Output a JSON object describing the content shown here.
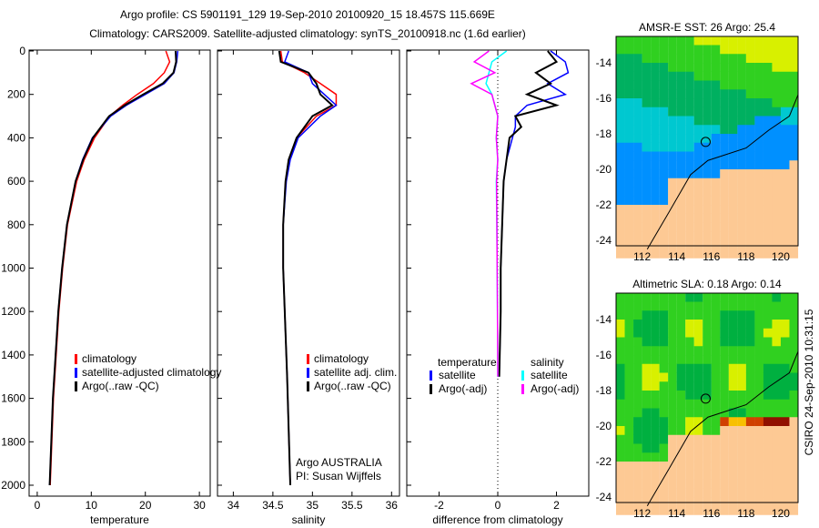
{
  "title_line1": "Argo profile: CS 5901191_129 19-Sep-2010 20100920_15 18.457S 115.669E",
  "title_line2": "Climatology: CARS2009. Satellite-adjusted climatology: synTS_20100918.nc (1.6d earlier)",
  "side_label": "CSIRO 24-Sep-2010 10:31:15",
  "chart_data": [
    {
      "type": "line",
      "xlabel": "temperature",
      "xlim": [
        -1.5,
        32
      ],
      "xticks": [
        0,
        10,
        20,
        30
      ],
      "ylim": [
        0,
        2000
      ],
      "yticks": [
        0,
        200,
        400,
        600,
        800,
        1000,
        1200,
        1400,
        1600,
        1800,
        2000
      ],
      "legend": [
        "climatology",
        "satellite-adjusted climatology",
        "Argo(..raw -QC)"
      ],
      "series": [
        {
          "name": "climatology",
          "color": "#ff0000",
          "depth": [
            0,
            50,
            100,
            150,
            200,
            250,
            300,
            400,
            500,
            600,
            800,
            1000,
            1200,
            1400,
            1600,
            1800,
            2000
          ],
          "values": [
            23.8,
            24.5,
            23.5,
            21.5,
            18.5,
            15.8,
            13.4,
            10.6,
            8.7,
            7.3,
            5.6,
            4.7,
            4.0,
            3.5,
            3.0,
            2.7,
            2.4
          ]
        },
        {
          "name": "satellite-adjusted climatology",
          "color": "#0000ff",
          "depth": [
            0,
            50,
            100,
            150,
            200,
            250,
            300,
            400,
            500,
            600,
            800,
            1000,
            1200,
            1400,
            1600,
            1800,
            2000
          ],
          "values": [
            26.0,
            25.8,
            25.3,
            23.5,
            20.0,
            16.5,
            13.6,
            10.2,
            8.4,
            7.1,
            5.5,
            4.6,
            3.9,
            3.4,
            2.9,
            2.6,
            2.3
          ]
        },
        {
          "name": "Argo(..raw -QC)",
          "color": "#000000",
          "depth": [
            0,
            50,
            100,
            150,
            200,
            250,
            300,
            400,
            500,
            600,
            800,
            1000,
            1200,
            1400,
            1600,
            1800,
            2000
          ],
          "values": [
            25.6,
            25.7,
            25.2,
            23.2,
            19.6,
            16.2,
            13.3,
            10.3,
            8.5,
            7.1,
            5.5,
            4.6,
            3.9,
            3.4,
            2.9,
            2.6,
            2.3
          ]
        }
      ]
    },
    {
      "type": "line",
      "xlabel": "salinity",
      "xlim": [
        33.8,
        36.1
      ],
      "xticks": [
        34,
        34.5,
        35,
        35.5,
        36
      ],
      "ylim": [
        0,
        2000
      ],
      "legend": [
        "climatology",
        "satellite adj. clim.",
        "Argo(..raw -QC)"
      ],
      "annotation": [
        "Argo AUSTRALIA",
        "PI: Susan Wijffels"
      ],
      "series": [
        {
          "name": "climatology",
          "color": "#ff0000",
          "depth": [
            0,
            50,
            100,
            150,
            200,
            250,
            300,
            400,
            500,
            600,
            800,
            1000,
            1500,
            2000
          ],
          "values": [
            34.6,
            34.62,
            34.9,
            35.1,
            35.3,
            35.3,
            35.05,
            34.8,
            34.7,
            34.66,
            34.63,
            34.63,
            34.68,
            34.72
          ]
        },
        {
          "name": "satellite adj. clim.",
          "color": "#0000ff",
          "depth": [
            0,
            50,
            100,
            150,
            200,
            250,
            300,
            400,
            500,
            600,
            800,
            1000,
            1500,
            2000
          ],
          "values": [
            34.7,
            34.65,
            34.95,
            35.0,
            35.15,
            35.3,
            35.1,
            34.82,
            34.72,
            34.67,
            34.63,
            34.63,
            34.68,
            34.72
          ]
        },
        {
          "name": "Argo(..raw -QC)",
          "color": "#000000",
          "depth": [
            0,
            50,
            100,
            150,
            200,
            250,
            300,
            400,
            500,
            600,
            800,
            1000,
            1500,
            2000
          ],
          "values": [
            34.58,
            34.6,
            34.95,
            35.05,
            35.1,
            35.25,
            35.0,
            34.8,
            34.7,
            34.66,
            34.63,
            34.63,
            34.68,
            34.72
          ]
        }
      ]
    },
    {
      "type": "line",
      "xlabel": "difference from climatology",
      "xlim": [
        -3.1,
        3.1
      ],
      "xticks": [
        -2,
        0,
        2
      ],
      "ylim": [
        0,
        2000
      ],
      "legend_headers": [
        "temperature",
        "salinity"
      ],
      "legend": [
        "satellite",
        "Argo(-adj)",
        "satellite",
        "Argo(-adj)"
      ],
      "series": [
        {
          "name": "temperature satellite",
          "color": "#0000ff",
          "depth": [
            0,
            50,
            100,
            150,
            200,
            250,
            300,
            350,
            400,
            500,
            600,
            800,
            1000,
            1200,
            1500
          ],
          "values": [
            1.8,
            2.3,
            2.4,
            1.7,
            2.3,
            1.0,
            0.6,
            0.6,
            0.5,
            0.3,
            0.2,
            0.15,
            0.1,
            0.1,
            0.05
          ]
        },
        {
          "name": "temperature Argo(-adj)",
          "color": "#000000",
          "depth": [
            0,
            50,
            100,
            150,
            200,
            250,
            300,
            350,
            400,
            500,
            600,
            800,
            1000,
            1200,
            1500
          ],
          "values": [
            1.7,
            2.0,
            1.3,
            1.8,
            1.0,
            2.0,
            0.6,
            0.8,
            0.4,
            0.3,
            0.2,
            0.15,
            0.1,
            0.1,
            0.05
          ]
        },
        {
          "name": "salinity satellite",
          "color": "#00ffff",
          "depth": [
            0,
            50,
            100,
            150,
            200,
            250,
            300,
            400,
            500,
            600,
            800,
            1000,
            1200,
            1500
          ],
          "values": [
            0.3,
            -0.2,
            -0.3,
            -0.4,
            -0.2,
            -0.1,
            0.0,
            -0.05,
            0.0,
            -0.05,
            -0.03,
            -0.02,
            -0.01,
            0.0
          ]
        },
        {
          "name": "salinity Argo(-adj)",
          "color": "#ff00ff",
          "depth": [
            0,
            50,
            100,
            150,
            200,
            250,
            300,
            400,
            500,
            600,
            800,
            1000,
            1200,
            1500
          ],
          "values": [
            -0.3,
            -0.8,
            -0.1,
            -0.9,
            -0.2,
            -0.1,
            0.0,
            -0.05,
            0.0,
            -0.04,
            -0.03,
            -0.02,
            -0.01,
            0.0
          ]
        }
      ]
    },
    {
      "type": "heatmap",
      "title": "AMSR-E SST: 26 Argo: 25.4",
      "xticks": [
        112,
        114,
        116,
        118,
        120
      ],
      "yticks": [
        14,
        16,
        18,
        20,
        22,
        24
      ],
      "argo_position": {
        "lon": 115.669,
        "lat": -18.457
      }
    },
    {
      "type": "heatmap",
      "title": "Altimetric SLA: 0.18 Argo: 0.14",
      "xticks": [
        112,
        114,
        116,
        118,
        120
      ],
      "yticks": [
        14,
        16,
        18,
        20,
        22,
        24
      ],
      "argo_position": {
        "lon": 115.669,
        "lat": -18.457
      }
    }
  ]
}
